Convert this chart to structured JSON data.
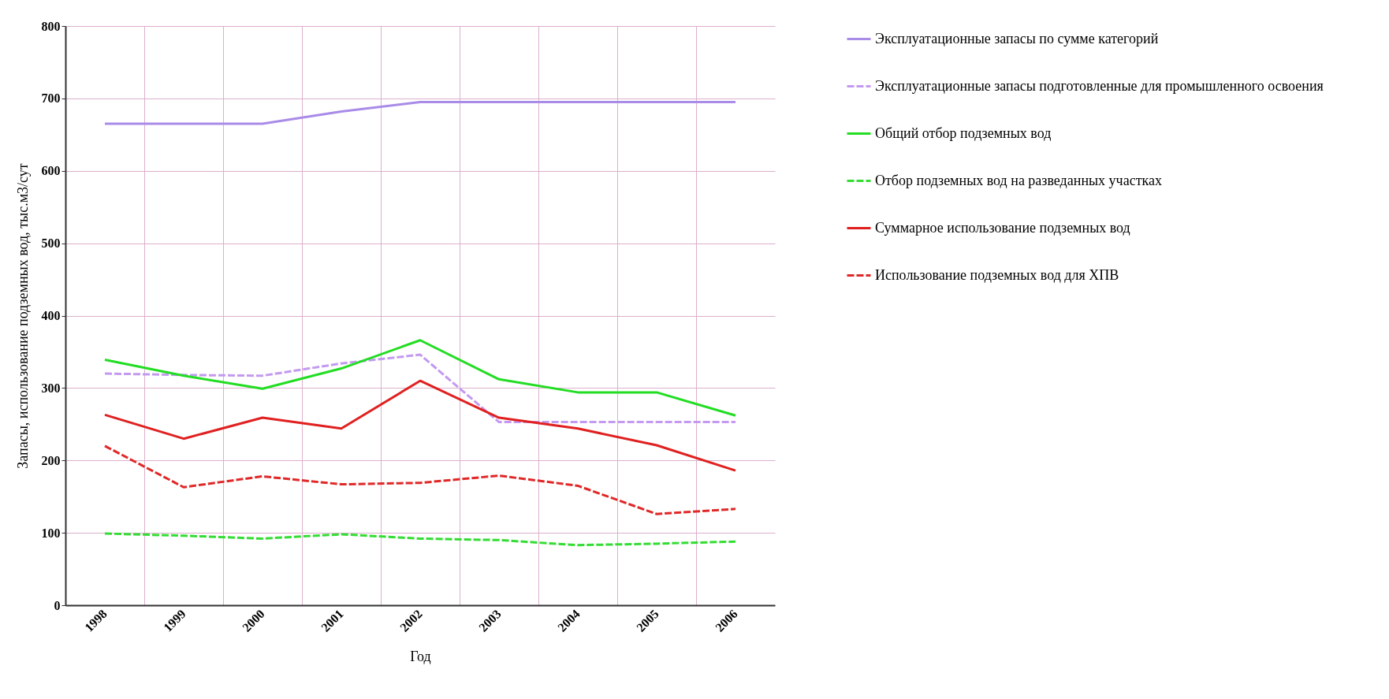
{
  "chart_data": {
    "type": "line",
    "xlabel": "Год",
    "ylabel": "Запасы, использование подземных вод, тыс.м3/сут",
    "categories": [
      "1998",
      "1999",
      "2000",
      "2001",
      "2002",
      "2003",
      "2004",
      "2005",
      "2006"
    ],
    "series": [
      {
        "name": "Эксплуатационные запасы по сумме категорий",
        "color": "#a98be8",
        "line_style": "solid",
        "values": [
          665,
          665,
          665,
          682,
          695,
          695,
          695,
          695,
          695
        ]
      },
      {
        "name": "Эксплуатационные запасы подготовленные для промышленного освоения",
        "color": "#c39af0",
        "line_style": "dashed",
        "values": [
          320,
          318,
          317,
          334,
          346,
          253,
          253,
          253,
          253
        ]
      },
      {
        "name": "Общий отбор подземных вод",
        "color": "#22dd22",
        "line_style": "solid",
        "values": [
          339,
          317,
          299,
          327,
          366,
          312,
          294,
          294,
          262
        ]
      },
      {
        "name": "Отбор подземных вод на разведанных участках",
        "color": "#33dd33",
        "line_style": "dashed",
        "values": [
          99,
          96,
          92,
          98,
          92,
          90,
          83,
          85,
          88
        ]
      },
      {
        "name": "Суммарное использование подземных вод",
        "color": "#e02020",
        "line_style": "solid",
        "values": [
          263,
          230,
          259,
          244,
          310,
          259,
          244,
          221,
          186
        ]
      },
      {
        "name": "Использование подземных вод для ХПВ",
        "color": "#e02828",
        "line_style": "dashed",
        "values": [
          220,
          163,
          178,
          167,
          169,
          179,
          165,
          126,
          133
        ]
      }
    ],
    "ylim": [
      0,
      800
    ],
    "yticks": [
      0,
      100,
      200,
      300,
      400,
      500,
      600,
      700,
      800
    ],
    "grid": true,
    "legend": "right"
  }
}
